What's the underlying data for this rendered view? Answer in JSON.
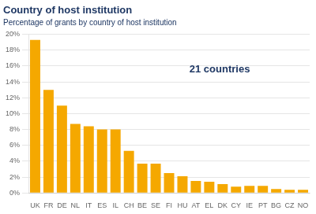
{
  "chart_data": {
    "type": "bar",
    "title": "Country of host institution",
    "subtitle": "Percentage of grants by country of host institution",
    "annotation": "21 countries",
    "categories": [
      "UK",
      "FR",
      "DE",
      "NL",
      "IT",
      "ES",
      "IL",
      "CH",
      "BE",
      "SE",
      "FI",
      "HU",
      "AT",
      "EL",
      "DK",
      "CY",
      "IE",
      "PT",
      "BG",
      "CZ",
      "NO"
    ],
    "values": [
      19.3,
      13.0,
      11.0,
      8.7,
      8.4,
      8.0,
      8.0,
      5.3,
      3.7,
      3.7,
      2.5,
      2.1,
      1.5,
      1.4,
      1.1,
      0.8,
      0.9,
      0.9,
      0.5,
      0.4,
      0.4
    ],
    "color": "#F5A800",
    "ylim": [
      0,
      20
    ],
    "yticks": [
      {
        "value": 0,
        "label": "0%"
      },
      {
        "value": 2,
        "label": "2%"
      },
      {
        "value": 4,
        "label": "4%"
      },
      {
        "value": 6,
        "label": "6%"
      },
      {
        "value": 8,
        "label": "8%"
      },
      {
        "value": 10,
        "label": "10%"
      },
      {
        "value": 12,
        "label": "12%"
      },
      {
        "value": 14,
        "label": "14%"
      },
      {
        "value": 16,
        "label": "16%"
      },
      {
        "value": 18,
        "label": "18%"
      },
      {
        "value": 20,
        "label": "20%"
      }
    ],
    "grid": true
  }
}
